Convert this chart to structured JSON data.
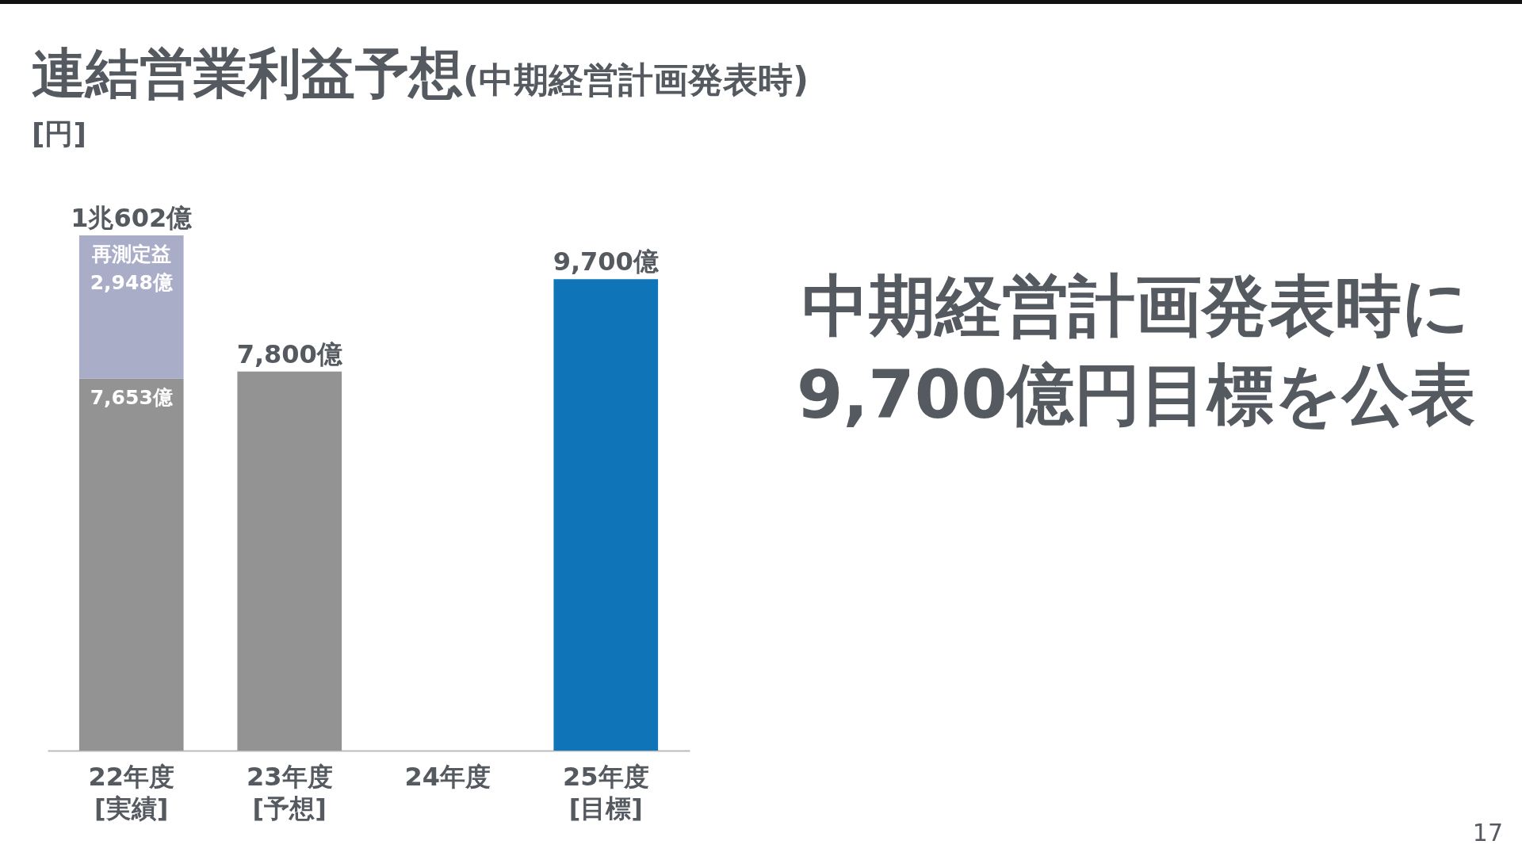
{
  "chart_data": {
    "type": "bar",
    "title": "連結営業利益予想(中期経営計画発表時)",
    "ylabel": "[円]",
    "categories": [
      "22年度\n[実績]",
      "23年度\n[予想]",
      "24年度",
      "25年度\n[目標]"
    ],
    "stacked": true,
    "series": [
      {
        "colors": [
          "#939393",
          "#939393",
          null,
          "#0f75b8"
        ],
        "values": [
          7653,
          7800,
          null,
          9700
        ],
        "value_labels": [
          "7,653億",
          "7,800億",
          null,
          "9,700億"
        ]
      },
      {
        "color": "#a9adc8",
        "values": [
          2948,
          null,
          null,
          null
        ],
        "value_labels": [
          "再測定益\n2,948億",
          null,
          null,
          null
        ]
      }
    ],
    "totals": [
      "1兆602億",
      null,
      null,
      null
    ],
    "annotations": [
      "中期経営計画発表時に\n9,700億円目標を公表",
      "17"
    ]
  }
}
